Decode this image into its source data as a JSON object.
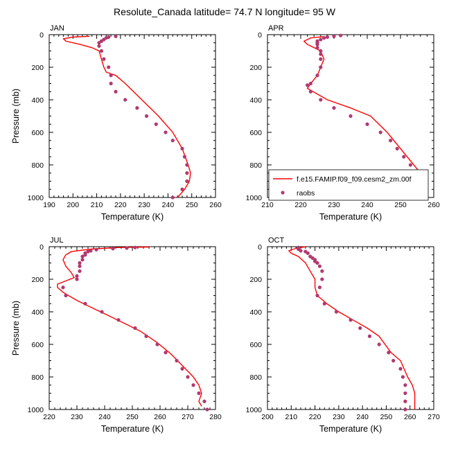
{
  "figure": {
    "title": "Resolute_Canada  latitude= 74.7 N longitude= 95 W"
  },
  "colors": {
    "model_line": "#ff0000",
    "obs_marker": "#b03a70",
    "axis": "#000000"
  },
  "legend": {
    "panel_index": 1,
    "entries": [
      {
        "label": "f.e15.FAMIP.f09_f09.cesm2_zm.00f",
        "kind": "line"
      },
      {
        "label": "raobs",
        "kind": "marker"
      }
    ]
  },
  "chart_data": [
    {
      "type": "line",
      "panel_label": "JAN",
      "xlabel": "Temperature (K)",
      "ylabel": "Pressure (mb)",
      "xlim": [
        190,
        260
      ],
      "ylim": [
        1000,
        0
      ],
      "xticks": [
        190,
        200,
        210,
        220,
        230,
        240,
        250,
        260
      ],
      "yticks": [
        0,
        200,
        400,
        600,
        800,
        1000
      ],
      "series": [
        {
          "kind": "line",
          "points": [
            [
              207,
              10
            ],
            [
              200,
              15
            ],
            [
              196,
              25
            ],
            [
              197,
              40
            ],
            [
              203,
              60
            ],
            [
              208,
              80
            ],
            [
              211,
              100
            ],
            [
              212,
              150
            ],
            [
              213,
              200
            ],
            [
              214,
              230
            ],
            [
              218,
              250
            ],
            [
              222,
              300
            ],
            [
              229,
              400
            ],
            [
              236,
              500
            ],
            [
              242,
              600
            ],
            [
              246,
              700
            ],
            [
              248.5,
              800
            ],
            [
              249.5,
              850
            ],
            [
              249,
              900
            ],
            [
              247,
              950
            ],
            [
              244,
              1000
            ]
          ]
        },
        {
          "kind": "scatter",
          "points": [
            [
              218,
              10
            ],
            [
              215,
              15
            ],
            [
              214,
              20
            ],
            [
              213,
              30
            ],
            [
              212,
              40
            ],
            [
              211,
              50
            ],
            [
              211,
              70
            ],
            [
              212,
              100
            ],
            [
              213,
              150
            ],
            [
              215,
              200
            ],
            [
              216,
              250
            ],
            [
              216,
              300
            ],
            [
              218,
              350
            ],
            [
              222,
              400
            ],
            [
              227,
              450
            ],
            [
              231,
              500
            ],
            [
              235,
              550
            ],
            [
              239,
              600
            ],
            [
              242,
              650
            ],
            [
              246,
              700
            ],
            [
              247,
              750
            ],
            [
              248,
              800
            ],
            [
              248,
              850
            ],
            [
              248,
              900
            ],
            [
              246,
              950
            ],
            [
              242,
              1000
            ]
          ]
        }
      ]
    },
    {
      "type": "line",
      "panel_label": "APR",
      "xlabel": "Temperature (K)",
      "ylabel": "",
      "xlim": [
        210,
        260
      ],
      "ylim": [
        1000,
        0
      ],
      "xticks": [
        210,
        220,
        230,
        240,
        250,
        260
      ],
      "yticks": [
        0,
        200,
        400,
        600,
        800,
        1000
      ],
      "series": [
        {
          "kind": "line",
          "points": [
            [
              227,
              12
            ],
            [
              223,
              20
            ],
            [
              221,
              40
            ],
            [
              222,
              60
            ],
            [
              224,
              80
            ],
            [
              226,
              100
            ],
            [
              227,
              150
            ],
            [
              226,
              200
            ],
            [
              225,
              250
            ],
            [
              223,
              300
            ],
            [
              222,
              330
            ],
            [
              228,
              400
            ],
            [
              235,
              450
            ],
            [
              241,
              500
            ],
            [
              246,
              600
            ],
            [
              250,
              700
            ],
            [
              254,
              800
            ],
            [
              256,
              850
            ],
            [
              257,
              900
            ],
            [
              255,
              950
            ],
            [
              253,
              1000
            ]
          ]
        },
        {
          "kind": "scatter",
          "points": [
            [
              232,
              5
            ],
            [
              230,
              10
            ],
            [
              228,
              15
            ],
            [
              227,
              20
            ],
            [
              226,
              30
            ],
            [
              225,
              40
            ],
            [
              225,
              50
            ],
            [
              225,
              60
            ],
            [
              225,
              80
            ],
            [
              226,
              100
            ],
            [
              226,
              120
            ],
            [
              226,
              150
            ],
            [
              226,
              200
            ],
            [
              225,
              250
            ],
            [
              223,
              300
            ],
            [
              222,
              310
            ],
            [
              223,
              350
            ],
            [
              226,
              400
            ],
            [
              230,
              450
            ],
            [
              235,
              500
            ],
            [
              240,
              550
            ],
            [
              244,
              600
            ],
            [
              247,
              650
            ],
            [
              249,
              700
            ],
            [
              251,
              750
            ],
            [
              253,
              800
            ],
            [
              254,
              850
            ],
            [
              254,
              900
            ],
            [
              252,
              950
            ],
            [
              251,
              1000
            ]
          ]
        }
      ]
    },
    {
      "type": "line",
      "panel_label": "JUL",
      "xlabel": "Temperature (K)",
      "ylabel": "Pressure (mb)",
      "xlim": [
        220,
        280
      ],
      "ylim": [
        1000,
        0
      ],
      "xticks": [
        220,
        230,
        240,
        250,
        260,
        270,
        280
      ],
      "yticks": [
        0,
        200,
        400,
        600,
        800,
        1000
      ],
      "series": [
        {
          "kind": "line",
          "points": [
            [
              256,
              2
            ],
            [
              245,
              5
            ],
            [
              235,
              15
            ],
            [
              228,
              30
            ],
            [
              226,
              50
            ],
            [
              225,
              80
            ],
            [
              226,
              120
            ],
            [
              228,
              160
            ],
            [
              229,
              190
            ],
            [
              226,
              210
            ],
            [
              223,
              230
            ],
            [
              223,
              250
            ],
            [
              225,
              280
            ],
            [
              230,
              330
            ],
            [
              236,
              380
            ],
            [
              241,
              420
            ],
            [
              247,
              470
            ],
            [
              253,
              520
            ],
            [
              259,
              590
            ],
            [
              264,
              660
            ],
            [
              268,
              730
            ],
            [
              272,
              800
            ],
            [
              274,
              850
            ],
            [
              275,
              900
            ],
            [
              274,
              950
            ],
            [
              275,
              980
            ]
          ]
        },
        {
          "kind": "scatter",
          "points": [
            [
              251,
              5
            ],
            [
              248,
              8
            ],
            [
              243,
              12
            ],
            [
              237,
              18
            ],
            [
              235,
              25
            ],
            [
              234,
              30
            ],
            [
              233,
              40
            ],
            [
              233,
              50
            ],
            [
              232,
              60
            ],
            [
              232,
              80
            ],
            [
              231,
              100
            ],
            [
              231,
              120
            ],
            [
              231,
              150
            ],
            [
              230,
              180
            ],
            [
              230,
              200
            ],
            [
              225,
              250
            ],
            [
              226,
              300
            ],
            [
              233,
              350
            ],
            [
              239,
              400
            ],
            [
              245,
              450
            ],
            [
              251,
              500
            ],
            [
              255,
              550
            ],
            [
              259,
              600
            ],
            [
              262,
              650
            ],
            [
              266,
              700
            ],
            [
              268,
              750
            ],
            [
              270,
              800
            ],
            [
              272,
              850
            ],
            [
              274,
              900
            ],
            [
              276,
              950
            ],
            [
              277,
              1000
            ]
          ]
        }
      ]
    },
    {
      "type": "line",
      "panel_label": "OCT",
      "xlabel": "Temperature (K)",
      "ylabel": "",
      "xlim": [
        200,
        270
      ],
      "ylim": [
        1000,
        0
      ],
      "xticks": [
        200,
        210,
        220,
        230,
        240,
        250,
        260,
        270
      ],
      "yticks": [
        0,
        200,
        400,
        600,
        800,
        1000
      ],
      "series": [
        {
          "kind": "line",
          "points": [
            [
              216,
              0
            ],
            [
              212,
              10
            ],
            [
              209,
              25
            ],
            [
              210,
              40
            ],
            [
              213,
              60
            ],
            [
              216,
              100
            ],
            [
              218,
              150
            ],
            [
              220,
              200
            ],
            [
              220,
              250
            ],
            [
              221,
              300
            ],
            [
              225,
              350
            ],
            [
              230,
              400
            ],
            [
              236,
              450
            ],
            [
              242,
              500
            ],
            [
              247,
              550
            ],
            [
              252,
              650
            ],
            [
              256,
              700
            ],
            [
              259,
              800
            ],
            [
              261,
              850
            ],
            [
              262,
              900
            ],
            [
              262,
              950
            ],
            [
              262,
              1000
            ]
          ]
        },
        {
          "kind": "scatter",
          "points": [
            [
              213,
              5
            ],
            [
              213,
              15
            ],
            [
              214,
              25
            ],
            [
              216,
              30
            ],
            [
              217,
              40
            ],
            [
              218,
              60
            ],
            [
              219,
              70
            ],
            [
              220,
              80
            ],
            [
              220,
              90
            ],
            [
              221,
              100
            ],
            [
              222,
              120
            ],
            [
              223,
              150
            ],
            [
              223,
              200
            ],
            [
              222,
              250
            ],
            [
              221,
              300
            ],
            [
              224,
              350
            ],
            [
              229,
              400
            ],
            [
              235,
              450
            ],
            [
              239,
              500
            ],
            [
              243,
              550
            ],
            [
              247,
              600
            ],
            [
              251,
              650
            ],
            [
              253,
              700
            ],
            [
              256,
              750
            ],
            [
              257,
              800
            ],
            [
              258,
              850
            ],
            [
              258,
              900
            ],
            [
              258,
              950
            ],
            [
              258,
              1000
            ]
          ]
        }
      ]
    }
  ]
}
